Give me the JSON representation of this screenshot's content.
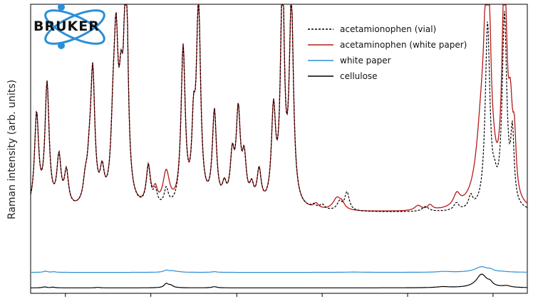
{
  "chart_data": {
    "type": "line",
    "title": "",
    "xlabel": "",
    "ylabel": "Raman intensity (arb. units)",
    "xlim": [
      0,
      100
    ],
    "ylim": [
      0,
      1
    ],
    "x_ticks": [
      7,
      24.2,
      41.5,
      58.7,
      75.9,
      93.1
    ],
    "grid": false,
    "legend_position": "top-right",
    "logo": {
      "text": "BRUKER",
      "color": "#2a8fd6"
    },
    "series": [
      {
        "name": "acetamionophen (vial)",
        "color": "#000000",
        "style": "dashed",
        "baseline": 0.155,
        "peaks": [
          [
            1.2,
            0.38,
            0.5
          ],
          [
            3.3,
            0.5,
            0.5
          ],
          [
            5.7,
            0.2,
            0.5
          ],
          [
            7.2,
            0.14,
            0.5
          ],
          [
            11.0,
            0.08,
            0.5
          ],
          [
            11.8,
            0.12,
            0.5
          ],
          [
            12.5,
            0.53,
            0.5
          ],
          [
            14.4,
            0.12,
            0.5
          ],
          [
            16.6,
            0.25,
            0.5
          ],
          [
            17.2,
            0.58,
            0.5
          ],
          [
            18.2,
            0.34,
            0.5
          ],
          [
            19.2,
            1.0,
            0.45
          ],
          [
            23.7,
            0.16,
            0.5
          ],
          [
            25.1,
            0.06,
            0.5
          ],
          [
            27.3,
            0.07,
            0.5
          ],
          [
            30.7,
            0.64,
            0.5
          ],
          [
            32.8,
            0.27,
            0.4
          ],
          [
            33.8,
            0.82,
            0.5
          ],
          [
            37.0,
            0.38,
            0.5
          ],
          [
            39.0,
            0.07,
            0.5
          ],
          [
            40.6,
            0.19,
            0.5
          ],
          [
            41.8,
            0.37,
            0.5
          ],
          [
            43.0,
            0.18,
            0.5
          ],
          [
            44.5,
            0.07,
            0.5
          ],
          [
            46.0,
            0.14,
            0.5
          ],
          [
            48.9,
            0.38,
            0.5
          ],
          [
            50.7,
            0.93,
            0.45
          ],
          [
            52.5,
            0.82,
            0.5
          ],
          [
            57.0,
            0.015,
            0.6
          ],
          [
            58.7,
            0.02,
            0.6
          ],
          [
            62.2,
            0.035,
            0.6
          ],
          [
            63.7,
            0.075,
            0.55
          ],
          [
            79.5,
            0.02,
            0.8
          ],
          [
            85.7,
            0.03,
            0.6
          ],
          [
            88.6,
            0.05,
            0.5
          ],
          [
            92.0,
            0.75,
            0.55
          ],
          [
            93.4,
            0.06,
            0.5
          ],
          [
            95.4,
            0.78,
            0.55
          ],
          [
            97.0,
            0.28,
            0.4
          ]
        ]
      },
      {
        "name": "acetaminophen (white paper)",
        "color": "#b51a1a",
        "style": "solid",
        "baseline": 0.155,
        "peaks": [
          [
            1.2,
            0.38,
            0.5
          ],
          [
            3.3,
            0.5,
            0.5
          ],
          [
            5.7,
            0.2,
            0.5
          ],
          [
            7.2,
            0.14,
            0.5
          ],
          [
            11.0,
            0.08,
            0.5
          ],
          [
            11.8,
            0.12,
            0.5
          ],
          [
            12.5,
            0.53,
            0.5
          ],
          [
            14.4,
            0.12,
            0.5
          ],
          [
            16.6,
            0.25,
            0.5
          ],
          [
            17.2,
            0.58,
            0.5
          ],
          [
            18.2,
            0.34,
            0.5
          ],
          [
            19.2,
            1.0,
            0.45
          ],
          [
            23.7,
            0.16,
            0.5
          ],
          [
            25.1,
            0.06,
            0.5
          ],
          [
            27.3,
            0.14,
            0.8
          ],
          [
            30.7,
            0.64,
            0.5
          ],
          [
            32.8,
            0.27,
            0.4
          ],
          [
            33.8,
            0.82,
            0.5
          ],
          [
            37.0,
            0.38,
            0.5
          ],
          [
            39.0,
            0.07,
            0.5
          ],
          [
            40.6,
            0.19,
            0.5
          ],
          [
            41.8,
            0.37,
            0.5
          ],
          [
            43.0,
            0.18,
            0.5
          ],
          [
            44.5,
            0.07,
            0.5
          ],
          [
            46.0,
            0.14,
            0.5
          ],
          [
            48.9,
            0.38,
            0.5
          ],
          [
            50.7,
            0.93,
            0.45
          ],
          [
            52.5,
            0.82,
            0.5
          ],
          [
            57.5,
            0.02,
            0.6
          ],
          [
            61.7,
            0.05,
            1.0
          ],
          [
            62.7,
            0.02,
            0.6
          ],
          [
            78.0,
            0.02,
            0.8
          ],
          [
            80.4,
            0.02,
            0.6
          ],
          [
            85.8,
            0.05,
            0.8
          ],
          [
            90.8,
            0.3,
            1.3
          ],
          [
            92.0,
            1.1,
            0.6
          ],
          [
            93.3,
            0.03,
            0.5
          ],
          [
            95.4,
            0.96,
            0.55
          ],
          [
            96.6,
            0.3,
            0.5
          ],
          [
            97.4,
            0.22,
            0.4
          ]
        ]
      },
      {
        "name": "white paper",
        "color": "#2a8fd6",
        "style": "solid",
        "baseline": 0.08,
        "peaks": [
          [
            3.0,
            0.03,
            0.5
          ],
          [
            4.7,
            0.015,
            0.5
          ],
          [
            27.3,
            0.05,
            0.6
          ],
          [
            28.5,
            0.03,
            0.8
          ],
          [
            29.6,
            0.012,
            1.0
          ],
          [
            37.0,
            0.018,
            0.6
          ],
          [
            65.0,
            0.008,
            2.0
          ],
          [
            83.2,
            0.02,
            1.5
          ],
          [
            90.8,
            0.14,
            1.6
          ],
          [
            92.6,
            0.04,
            0.6
          ],
          [
            95.0,
            0.012,
            1.2
          ]
        ]
      },
      {
        "name": "cellulose",
        "color": "#000000",
        "style": "solid",
        "baseline": 0.015,
        "peaks": [
          [
            2.8,
            0.012,
            0.5
          ],
          [
            4.5,
            0.008,
            0.5
          ],
          [
            13.5,
            0.006,
            0.5
          ],
          [
            27.3,
            0.05,
            0.5
          ],
          [
            28.2,
            0.03,
            0.6
          ],
          [
            37.0,
            0.015,
            0.6
          ],
          [
            83.0,
            0.012,
            1.5
          ],
          [
            90.8,
            0.17,
            1.3
          ],
          [
            92.5,
            0.04,
            0.6
          ],
          [
            95.8,
            0.02,
            1.0
          ]
        ]
      }
    ]
  }
}
